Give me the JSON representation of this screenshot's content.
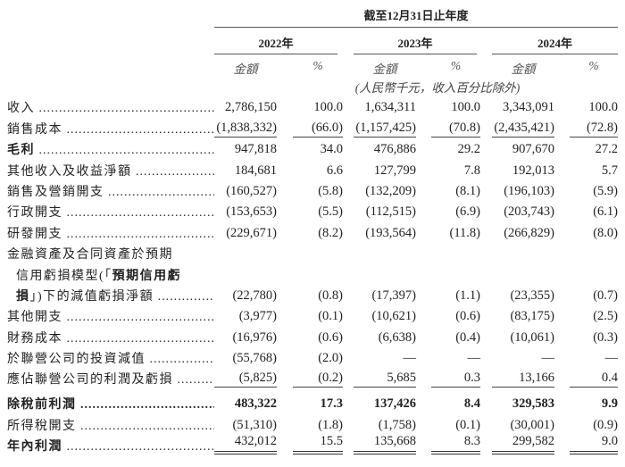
{
  "header": {
    "period": "截至12月31日止年度",
    "years": [
      "2022年",
      "2023年",
      "2024年"
    ],
    "amount_label": "金額",
    "pct_label": "%",
    "unit_note": "(人民幣千元，收入百分比除外)"
  },
  "rows": [
    {
      "label": [
        {
          "t": "收入",
          "b": false
        }
      ],
      "dots": true,
      "values": [
        "2,786,150",
        "100.0",
        "1,634,311",
        "100.0",
        "3,343,091",
        "100.0"
      ]
    },
    {
      "label": [
        {
          "t": "銷售成本",
          "b": false
        }
      ],
      "dots": true,
      "values": [
        "(1,838,332)",
        "(66.0)",
        "(1,157,425)",
        "(70.8)",
        "(2,435,421)",
        "(72.8)"
      ],
      "underline": "single"
    },
    {
      "label": [
        {
          "t": "毛利",
          "b": true
        }
      ],
      "dots": true,
      "values": [
        "947,818",
        "34.0",
        "476,886",
        "29.2",
        "907,670",
        "27.2"
      ]
    },
    {
      "label": [
        {
          "t": "其他收入及收益淨額",
          "b": false
        }
      ],
      "dots": true,
      "values": [
        "184,681",
        "6.6",
        "127,799",
        "7.8",
        "192,013",
        "5.7"
      ]
    },
    {
      "label": [
        {
          "t": "銷售及營銷開支",
          "b": false
        }
      ],
      "dots": true,
      "values": [
        "(160,527)",
        "(5.8)",
        "(132,209)",
        "(8.1)",
        "(196,103)",
        "(5.9)"
      ]
    },
    {
      "label": [
        {
          "t": "行政開支",
          "b": false
        }
      ],
      "dots": true,
      "values": [
        "(153,653)",
        "(5.5)",
        "(112,515)",
        "(6.9)",
        "(203,743)",
        "(6.1)"
      ]
    },
    {
      "label": [
        {
          "t": "研發開支",
          "b": false
        }
      ],
      "dots": true,
      "values": [
        "(229,671)",
        "(8.2)",
        "(193,564)",
        "(11.8)",
        "(266,829)",
        "(8.0)"
      ]
    },
    {
      "label": [
        {
          "t": "金融資產及合同資產於預期",
          "b": false
        }
      ],
      "dots": false,
      "values": [
        "",
        "",
        "",
        "",
        "",
        ""
      ]
    },
    {
      "label": [
        {
          "t": "信用虧損模型(「",
          "b": false
        },
        {
          "t": "預期信用虧",
          "b": true
        }
      ],
      "dots": false,
      "cont": true,
      "values": [
        "",
        "",
        "",
        "",
        "",
        ""
      ]
    },
    {
      "label": [
        {
          "t": "損",
          "b": true
        },
        {
          "t": "」)下的減值虧損淨額",
          "b": false
        }
      ],
      "dots": true,
      "cont": true,
      "values": [
        "(22,780)",
        "(0.8)",
        "(17,397)",
        "(1.1)",
        "(23,355)",
        "(0.7)"
      ]
    },
    {
      "label": [
        {
          "t": "其他開支",
          "b": false
        }
      ],
      "dots": true,
      "values": [
        "(3,977)",
        "(0.1)",
        "(10,621)",
        "(0.6)",
        "(83,175)",
        "(2.5)"
      ]
    },
    {
      "label": [
        {
          "t": "財務成本",
          "b": false
        }
      ],
      "dots": true,
      "values": [
        "(16,976)",
        "(0.6)",
        "(6,638)",
        "(0.4)",
        "(10,061)",
        "(0.3)"
      ]
    },
    {
      "label": [
        {
          "t": "於聯營公司的投資減值",
          "b": false
        }
      ],
      "dots": true,
      "values": [
        "(55,768)",
        "(2.0)",
        "—",
        "—",
        "—",
        "—"
      ]
    },
    {
      "label": [
        {
          "t": "應佔聯營公司的利潤及虧損",
          "b": false
        }
      ],
      "dots": true,
      "values": [
        "(5,825)",
        "(0.2)",
        "5,685",
        "0.3",
        "13,166",
        "0.4"
      ],
      "underline": "single"
    },
    {
      "label": [
        {
          "t": "除稅前利潤",
          "b": true
        }
      ],
      "dots": true,
      "bold": true,
      "values": [
        "483,322",
        "17.3",
        "137,426",
        "8.4",
        "329,583",
        "9.9"
      ],
      "tall": true
    },
    {
      "label": [
        {
          "t": "所得稅開支",
          "b": false
        }
      ],
      "dots": true,
      "values": [
        "(51,310)",
        "(1.8)",
        "(1,758)",
        "(0.1)",
        "(30,001)",
        "(0.9)"
      ]
    },
    {
      "label": [
        {
          "t": "年內利潤",
          "b": true
        }
      ],
      "dots": true,
      "values": [
        "432,012",
        "15.5",
        "135,668",
        "8.3",
        "299,582",
        "9.0"
      ],
      "underline": "double"
    }
  ]
}
